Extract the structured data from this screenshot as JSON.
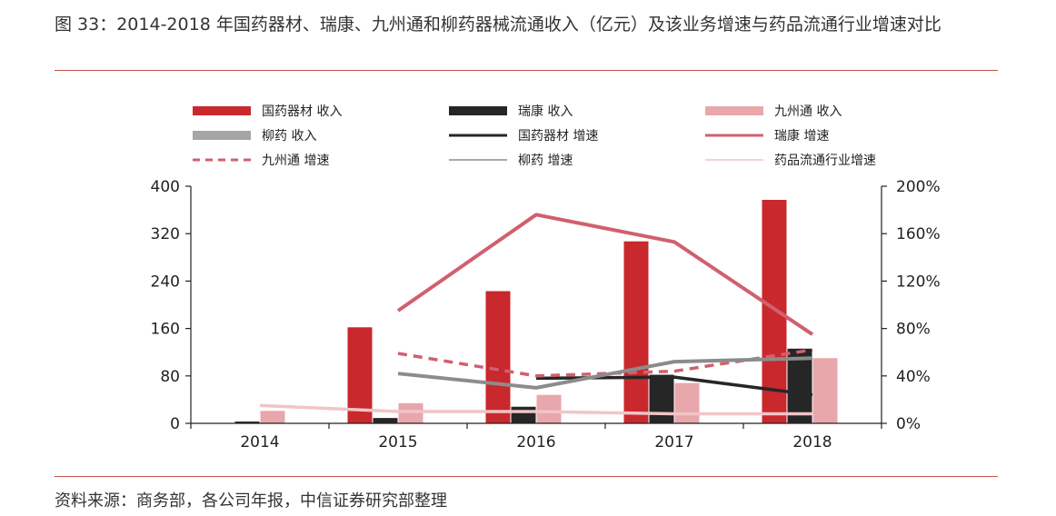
{
  "title": "图 33：2014-2018 年国药器材、瑞康、九州通和柳药器械流通收入（亿元）及该业务增速与药品流通行业增速对比",
  "source": "资料来源：商务部，各公司年报，中信证券研究部整理",
  "chart_data": {
    "type": "bar",
    "categories": [
      "2014",
      "2015",
      "2016",
      "2017",
      "2018"
    ],
    "ylim_left": [
      0,
      400
    ],
    "yticks_left": [
      "0",
      "80",
      "160",
      "240",
      "320",
      "400"
    ],
    "ylim_right": [
      0,
      200
    ],
    "yticks_right": [
      "0%",
      "40%",
      "80%",
      "120%",
      "160%",
      "200%"
    ],
    "grid": false,
    "legend_position": "top",
    "bar_series": [
      {
        "name": "国药器材 收入",
        "color": "#c9282d",
        "values": [
          0,
          162,
          223,
          307,
          377
        ]
      },
      {
        "name": "瑞康 收入",
        "color": "#262626",
        "values": [
          3,
          9,
          28,
          82,
          126
        ]
      },
      {
        "name": "九州通 收入",
        "color": "#e8a7ab",
        "values": [
          21,
          34,
          48,
          68,
          110
        ]
      },
      {
        "name": "柳药 收入",
        "color": "#a6a6a6",
        "values": [
          0,
          0,
          0,
          0,
          0
        ]
      }
    ],
    "line_series": [
      {
        "name": "国药器材 增速",
        "color": "#262626",
        "dash": "",
        "width": 3.5,
        "values": [
          null,
          null,
          38,
          39,
          24
        ]
      },
      {
        "name": "瑞康 增速",
        "color": "#d0606e",
        "dash": "",
        "width": 4,
        "values": [
          null,
          95,
          176,
          153,
          75
        ]
      },
      {
        "name": "九州通 增速",
        "color": "#d0606e",
        "dash": "10,7",
        "width": 3.5,
        "values": [
          null,
          59,
          40,
          44,
          62
        ]
      },
      {
        "name": "柳药 增速",
        "color": "#8c8c8c",
        "dash": "",
        "width": 4,
        "values": [
          null,
          42,
          30,
          52,
          55
        ]
      },
      {
        "name": "药品流通行业增速",
        "color": "#f1c4c8",
        "dash": "",
        "width": 3.5,
        "values": [
          15,
          10,
          10,
          8,
          8
        ]
      }
    ]
  }
}
